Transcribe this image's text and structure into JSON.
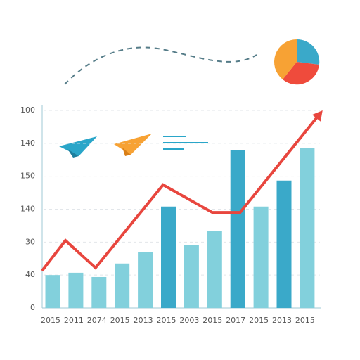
{
  "chart_data": {
    "type": "bar",
    "categories": [
      "2015",
      "2011",
      "2074",
      "2015",
      "2013",
      "2015",
      "2003",
      "2015",
      "2017",
      "2015",
      "2013",
      "2015"
    ],
    "values": [
      1.0,
      1.07,
      0.94,
      1.35,
      1.69,
      3.08,
      1.92,
      2.33,
      4.79,
      3.08,
      3.87,
      4.85
    ],
    "colors": [
      "#82d0dc",
      "#82d0dc",
      "#82d0dc",
      "#82d0dc",
      "#82d0dc",
      "#3aa9c9",
      "#82d0dc",
      "#82d0dc",
      "#3aa9c9",
      "#82d0dc",
      "#3aa9c9",
      "#82d0dc"
    ],
    "ylim": [
      0,
      6
    ],
    "yticks": [
      {
        "value": 0,
        "label": "0"
      },
      {
        "value": 1,
        "label": "40"
      },
      {
        "value": 2,
        "label": "30"
      },
      {
        "value": 3,
        "label": "140"
      },
      {
        "value": 4,
        "label": "150"
      },
      {
        "value": 5,
        "label": "140"
      },
      {
        "value": 6,
        "label": "100"
      }
    ],
    "grid": true,
    "line": {
      "x": [
        -0.46,
        0.55,
        1.85,
        4.77,
        6.9,
        8.1,
        11.55
      ],
      "values": [
        1.13,
        2.05,
        1.22,
        3.74,
        2.9,
        2.9,
        5.9
      ],
      "color": "#e8463e"
    }
  }
}
